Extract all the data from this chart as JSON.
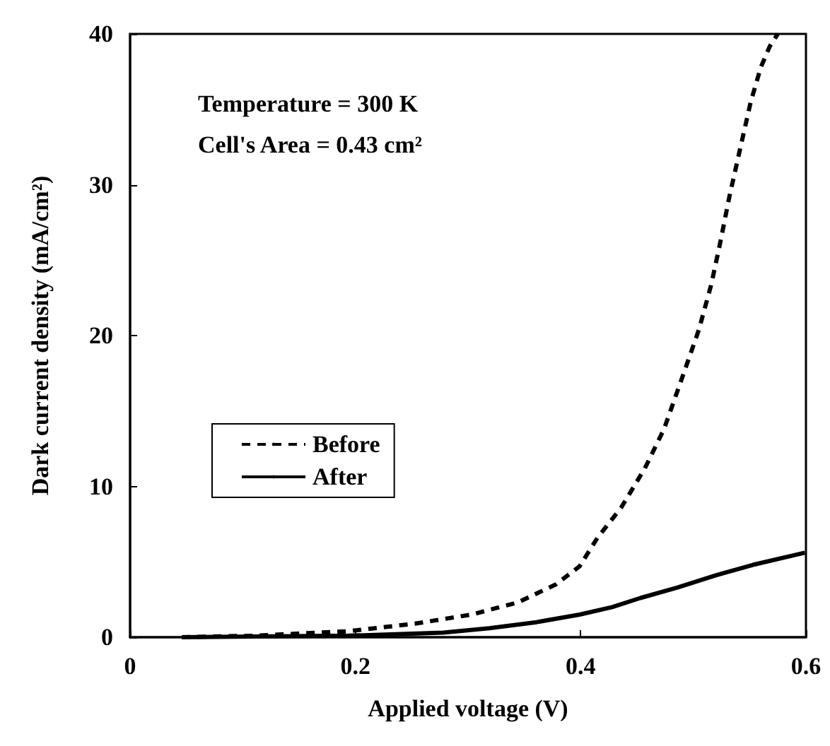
{
  "chart_data": {
    "type": "line",
    "xlabel": "Applied voltage (V)",
    "ylabel": "Dark current density (mA/cm²)",
    "annotations": [
      "Temperature = 300 K",
      "Cell's Area = 0.43 cm²"
    ],
    "xlim": [
      0,
      0.6
    ],
    "xticks": [
      0,
      0.2,
      0.4,
      0.6
    ],
    "ylim": [
      0,
      40
    ],
    "yticks": [
      0,
      10,
      20,
      30,
      40
    ],
    "grid": false,
    "legend": "left",
    "marker": "none",
    "series": [
      {
        "name": "Before",
        "color": "#000000",
        "line_style": "dashed",
        "x": [
          0.046,
          0.11,
          0.194,
          0.253,
          0.303,
          0.344,
          0.378,
          0.399,
          0.415,
          0.436,
          0.457,
          0.474,
          0.491,
          0.505,
          0.516,
          0.524,
          0.532,
          0.541,
          0.551,
          0.56,
          0.568,
          0.575
        ],
        "values": [
          0,
          0.1,
          0.4,
          0.9,
          1.5,
          2.3,
          3.5,
          4.7,
          6.6,
          8.6,
          11.2,
          13.8,
          17.4,
          20.4,
          23.4,
          26.2,
          29.2,
          32.2,
          35.5,
          37.8,
          39.2,
          40
        ]
      },
      {
        "name": "After",
        "color": "#000000",
        "line_style": "solid",
        "x": [
          0.046,
          0.194,
          0.278,
          0.319,
          0.361,
          0.399,
          0.428,
          0.453,
          0.486,
          0.52,
          0.553,
          0.599
        ],
        "values": [
          0,
          0.1,
          0.3,
          0.6,
          1.0,
          1.5,
          2.0,
          2.6,
          3.3,
          4.1,
          4.8,
          5.6
        ]
      }
    ]
  }
}
